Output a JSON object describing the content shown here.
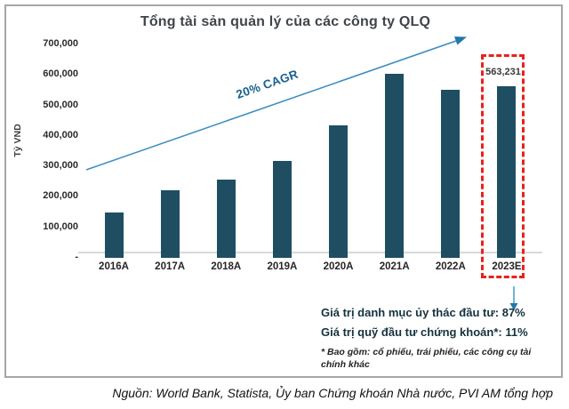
{
  "card": {
    "title": "Tổng tài sản quản lý của các công ty QLQ"
  },
  "chart_data": {
    "type": "bar",
    "title": "Tổng tài sản quản lý của các công ty QLQ",
    "xlabel": "",
    "ylabel": "Tỷ VND",
    "categories": [
      "2016A",
      "2017A",
      "2018A",
      "2019A",
      "2020A",
      "2021A",
      "2022A",
      "2023E"
    ],
    "values": [
      150000,
      221000,
      258000,
      318000,
      435000,
      605000,
      551000,
      563231
    ],
    "ylim": [
      0,
      700000
    ],
    "ytick_step": 100000,
    "ytick_labels": [
      "700,000",
      "600,000",
      "500,000",
      "400,000",
      "300,000",
      "200,000",
      "100,000",
      "-"
    ],
    "grid": false,
    "legend": "none",
    "cagr_label": "20% CAGR",
    "highlight": {
      "category": "2023E",
      "value_label": "563,231"
    }
  },
  "annotations": {
    "line1": "Giá trị danh mục ủy thác đầu tư: 87%",
    "line2": "Giá trị quỹ đầu tư chứng khoán*: 11%",
    "footnote": "* Bao gồm: cổ phiếu, trái phiếu, các công cụ tài chính khác"
  },
  "source": "Nguồn: World Bank, Statista, Ủy ban Chứng khoán Nhà nước, PVI AM tổng hợp",
  "colors": {
    "bar": "#1f4e63",
    "trend_arrow": "#3f8fc1",
    "trend_arrowhead": "#2277ab",
    "cagr_text": "#17618f",
    "highlight_box": "#e8211d",
    "down_arrow": "#49a3c9",
    "title": "#3f454a",
    "annotation_text": "#16323f"
  }
}
